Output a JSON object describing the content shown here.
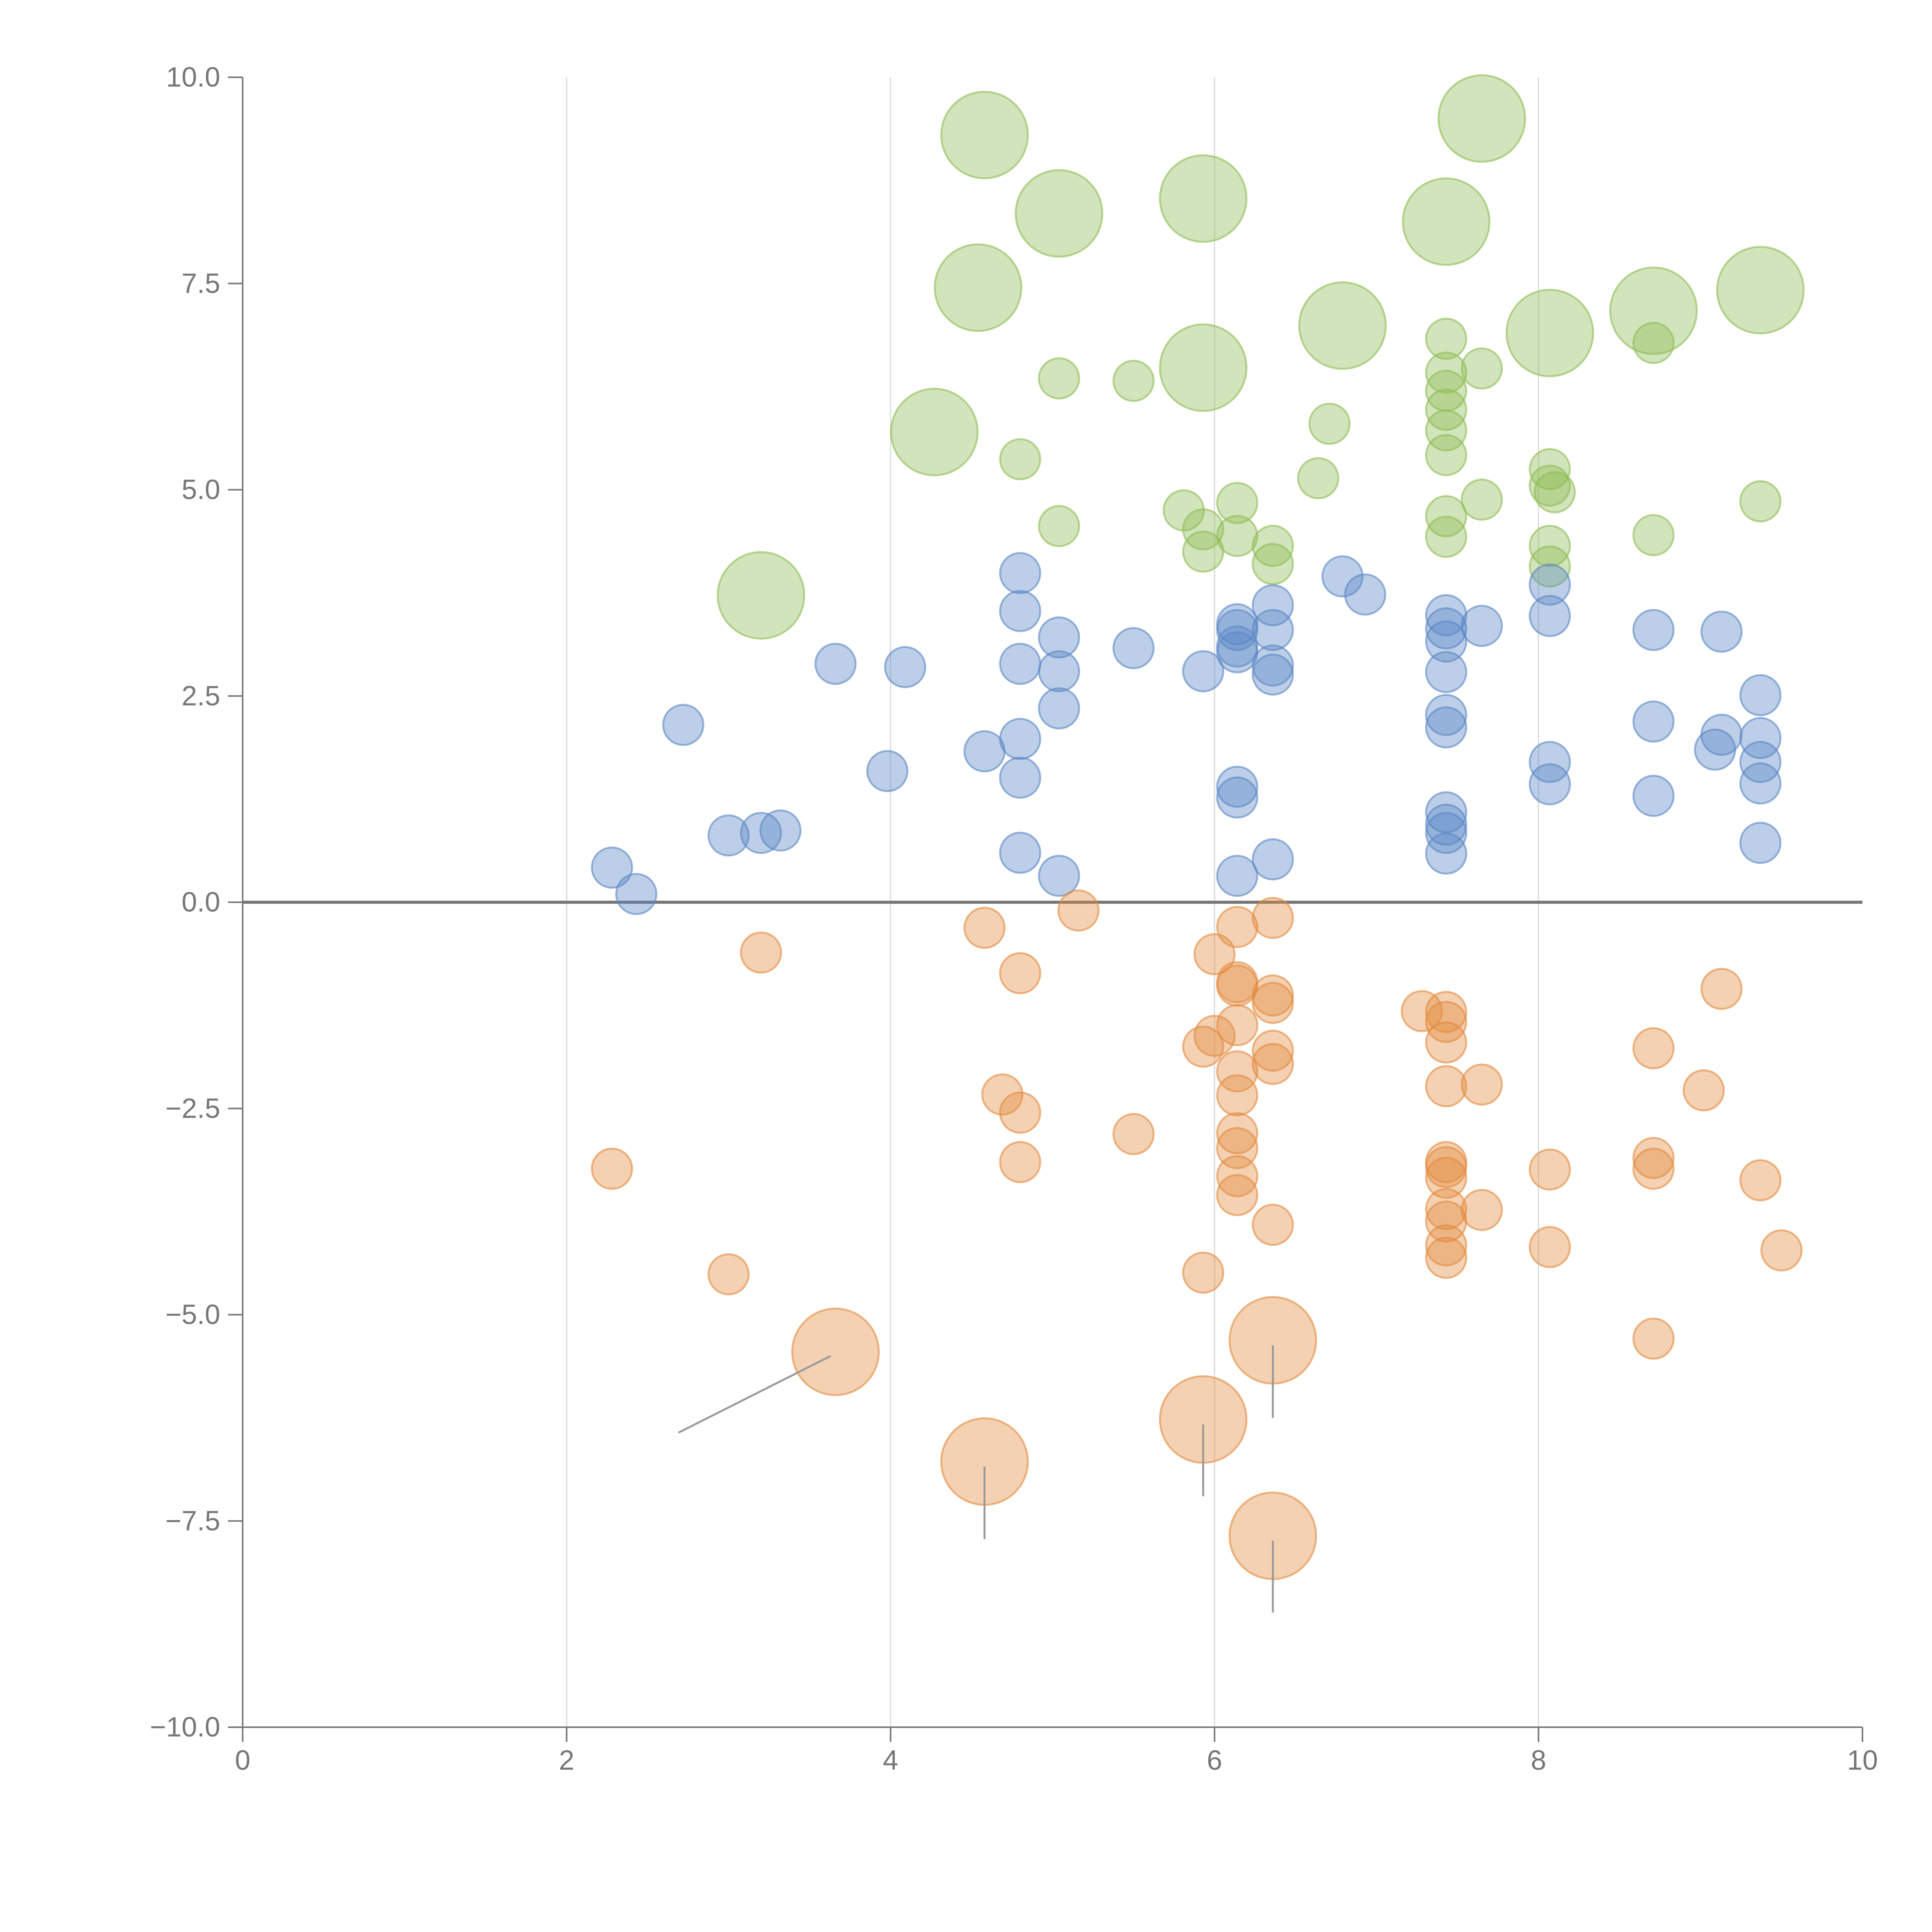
{
  "chart_data": {
    "type": "scatter",
    "title": "",
    "xlabel": "",
    "ylabel": "",
    "xlim": [
      0,
      10
    ],
    "ylim": [
      -10,
      10
    ],
    "grid": "vertical",
    "x_ticks": [
      "0",
      "2",
      "4",
      "6",
      "8",
      "10"
    ],
    "x_tick_values": [
      0,
      2,
      4,
      6,
      8,
      10
    ],
    "y_ticks": [
      "10.0",
      "7.5",
      "5.0",
      "2.5",
      "0.0",
      "−2.5",
      "−5.0",
      "−7.5",
      "−10.0"
    ],
    "y_tick_values": [
      10,
      7.5,
      5,
      2.5,
      0,
      -2.5,
      -5,
      -7.5,
      -10
    ],
    "colors": {
      "green": "#8fbc55",
      "blue": "#5b87c5",
      "orange": "#e38b3f",
      "axis": "#777777",
      "grid": "#d9d9d9",
      "zero_line": "#777777",
      "leader": "#999999"
    },
    "series": [
      {
        "name": "green",
        "color": "#8fbc55",
        "points": [
          [
            4.58,
            9.3,
            3
          ],
          [
            5.93,
            8.53,
            3
          ],
          [
            5.04,
            8.35,
            3
          ],
          [
            7.43,
            8.25,
            3
          ],
          [
            7.65,
            9.5,
            3
          ],
          [
            4.54,
            7.45,
            3
          ],
          [
            6.79,
            6.99,
            3
          ],
          [
            8.07,
            6.9,
            3
          ],
          [
            8.71,
            7.17,
            3
          ],
          [
            9.37,
            7.42,
            3
          ],
          [
            5.93,
            6.48,
            3
          ],
          [
            4.27,
            5.7,
            3
          ],
          [
            3.2,
            3.72,
            3
          ],
          [
            5.04,
            6.35,
            1
          ],
          [
            5.5,
            6.32,
            1
          ],
          [
            7.43,
            6.83,
            1
          ],
          [
            7.65,
            6.47,
            1
          ],
          [
            8.71,
            6.78,
            1
          ],
          [
            7.43,
            6.42,
            1
          ],
          [
            7.43,
            6.2,
            1
          ],
          [
            7.43,
            5.97,
            1
          ],
          [
            7.43,
            5.72,
            1
          ],
          [
            7.43,
            5.42,
            1
          ],
          [
            6.71,
            5.8,
            1
          ],
          [
            4.8,
            5.37,
            1
          ],
          [
            6.64,
            5.14,
            1
          ],
          [
            8.07,
            5.25,
            1
          ],
          [
            8.07,
            5.05,
            1
          ],
          [
            8.1,
            4.97,
            1
          ],
          [
            7.65,
            4.88,
            1
          ],
          [
            9.37,
            4.86,
            1
          ],
          [
            5.81,
            4.75,
            1
          ],
          [
            6.14,
            4.84,
            1
          ],
          [
            7.43,
            4.68,
            1
          ],
          [
            5.04,
            4.56,
            1
          ],
          [
            5.93,
            4.52,
            1
          ],
          [
            6.14,
            4.44,
            1
          ],
          [
            7.43,
            4.43,
            1
          ],
          [
            8.71,
            4.45,
            1
          ],
          [
            6.36,
            4.32,
            1
          ],
          [
            8.07,
            4.32,
            1
          ],
          [
            5.93,
            4.25,
            1
          ],
          [
            6.36,
            4.1,
            1
          ],
          [
            8.07,
            4.07,
            1
          ]
        ]
      },
      {
        "name": "blue",
        "color": "#5b87c5",
        "points": [
          [
            4.8,
            3.99,
            1
          ],
          [
            6.79,
            3.95,
            1
          ],
          [
            6.93,
            3.73,
            1
          ],
          [
            8.07,
            3.85,
            1
          ],
          [
            6.36,
            3.6,
            1
          ],
          [
            4.8,
            3.53,
            1
          ],
          [
            7.43,
            3.48,
            1
          ],
          [
            8.07,
            3.47,
            1
          ],
          [
            6.14,
            3.37,
            1
          ],
          [
            7.65,
            3.35,
            1
          ],
          [
            7.43,
            3.32,
            1
          ],
          [
            6.14,
            3.3,
            1
          ],
          [
            6.36,
            3.3,
            1
          ],
          [
            8.71,
            3.3,
            1
          ],
          [
            9.13,
            3.28,
            1
          ],
          [
            5.04,
            3.21,
            1
          ],
          [
            7.43,
            3.16,
            1
          ],
          [
            6.14,
            3.1,
            1
          ],
          [
            5.5,
            3.08,
            1
          ],
          [
            6.14,
            3.03,
            1
          ],
          [
            3.66,
            2.89,
            1
          ],
          [
            4.8,
            2.89,
            1
          ],
          [
            4.09,
            2.85,
            1
          ],
          [
            6.36,
            2.87,
            1
          ],
          [
            5.04,
            2.8,
            1
          ],
          [
            5.93,
            2.8,
            1
          ],
          [
            7.43,
            2.79,
            1
          ],
          [
            6.36,
            2.76,
            1
          ],
          [
            9.37,
            2.51,
            1
          ],
          [
            5.04,
            2.35,
            1
          ],
          [
            7.43,
            2.27,
            1
          ],
          [
            8.71,
            2.19,
            1
          ],
          [
            2.72,
            2.15,
            1
          ],
          [
            7.43,
            2.12,
            1
          ],
          [
            4.8,
            1.98,
            1
          ],
          [
            9.37,
            1.99,
            1
          ],
          [
            9.13,
            2.03,
            1
          ],
          [
            9.09,
            1.85,
            1
          ],
          [
            4.58,
            1.83,
            1
          ],
          [
            8.07,
            1.7,
            1
          ],
          [
            9.37,
            1.7,
            1
          ],
          [
            3.98,
            1.59,
            1
          ],
          [
            4.8,
            1.51,
            1
          ],
          [
            8.07,
            1.43,
            1
          ],
          [
            9.37,
            1.44,
            1
          ],
          [
            6.14,
            1.4,
            1
          ],
          [
            6.14,
            1.27,
            1
          ],
          [
            8.71,
            1.29,
            1
          ],
          [
            7.43,
            1.09,
            1
          ],
          [
            7.43,
            0.94,
            1
          ],
          [
            7.43,
            0.84,
            1
          ],
          [
            3.32,
            0.87,
            1
          ],
          [
            3.2,
            0.84,
            1
          ],
          [
            3.0,
            0.81,
            1
          ],
          [
            9.37,
            0.72,
            1
          ],
          [
            4.8,
            0.6,
            1
          ],
          [
            7.43,
            0.59,
            1
          ],
          [
            6.36,
            0.52,
            1
          ],
          [
            2.28,
            0.42,
            1
          ],
          [
            5.04,
            0.32,
            1
          ],
          [
            6.14,
            0.32,
            1
          ],
          [
            2.43,
            0.1,
            1
          ]
        ]
      },
      {
        "name": "orange",
        "color": "#e38b3f",
        "points": [
          [
            5.16,
            -0.1,
            1
          ],
          [
            6.36,
            -0.19,
            1
          ],
          [
            4.58,
            -0.31,
            1
          ],
          [
            6.14,
            -0.3,
            1
          ],
          [
            3.2,
            -0.61,
            1
          ],
          [
            6.0,
            -0.63,
            1
          ],
          [
            4.8,
            -0.86,
            1
          ],
          [
            6.14,
            -0.97,
            1
          ],
          [
            6.14,
            -1.01,
            1
          ],
          [
            9.13,
            -1.05,
            1
          ],
          [
            6.36,
            -1.13,
            1
          ],
          [
            6.36,
            -1.22,
            1
          ],
          [
            7.28,
            -1.32,
            1
          ],
          [
            7.43,
            -1.33,
            1
          ],
          [
            7.43,
            -1.45,
            1
          ],
          [
            6.14,
            -1.49,
            1
          ],
          [
            6.0,
            -1.62,
            1
          ],
          [
            7.43,
            -1.7,
            1
          ],
          [
            5.93,
            -1.75,
            1
          ],
          [
            8.71,
            -1.77,
            1
          ],
          [
            6.36,
            -1.8,
            1
          ],
          [
            6.36,
            -1.96,
            1
          ],
          [
            6.14,
            -2.05,
            1
          ],
          [
            7.43,
            -2.23,
            1
          ],
          [
            7.65,
            -2.21,
            1
          ],
          [
            4.69,
            -2.33,
            1
          ],
          [
            6.14,
            -2.34,
            1
          ],
          [
            9.02,
            -2.28,
            1
          ],
          [
            4.8,
            -2.55,
            1
          ],
          [
            5.5,
            -2.81,
            1
          ],
          [
            6.14,
            -2.8,
            1
          ],
          [
            6.14,
            -2.98,
            1
          ],
          [
            4.8,
            -3.15,
            1
          ],
          [
            7.43,
            -3.15,
            1
          ],
          [
            8.71,
            -3.1,
            1
          ],
          [
            2.28,
            -3.23,
            1
          ],
          [
            8.07,
            -3.24,
            1
          ],
          [
            7.43,
            -3.21,
            1
          ],
          [
            8.71,
            -3.23,
            1
          ],
          [
            6.14,
            -3.32,
            1
          ],
          [
            7.43,
            -3.34,
            1
          ],
          [
            9.37,
            -3.37,
            1
          ],
          [
            6.14,
            -3.55,
            1
          ],
          [
            7.43,
            -3.72,
            1
          ],
          [
            7.65,
            -3.73,
            1
          ],
          [
            7.43,
            -3.87,
            1
          ],
          [
            6.36,
            -3.91,
            1
          ],
          [
            7.43,
            -4.16,
            1
          ],
          [
            8.07,
            -4.18,
            1
          ],
          [
            9.5,
            -4.22,
            1
          ],
          [
            7.43,
            -4.31,
            1
          ],
          [
            3.0,
            -4.51,
            1
          ],
          [
            5.93,
            -4.49,
            1
          ],
          [
            8.71,
            -5.29,
            1
          ],
          [
            3.66,
            -5.45,
            3
          ],
          [
            6.36,
            -5.31,
            3
          ],
          [
            5.93,
            -6.27,
            3
          ],
          [
            4.58,
            -6.78,
            3
          ],
          [
            6.36,
            -7.68,
            3
          ]
        ]
      }
    ],
    "leader_lines": [
      [
        2.69,
        -6.43,
        3.63,
        -5.5
      ],
      [
        6.36,
        -5.37,
        6.36,
        -6.25
      ],
      [
        5.93,
        -6.33,
        5.93,
        -7.2
      ],
      [
        4.58,
        -6.84,
        4.58,
        -7.72
      ],
      [
        6.36,
        -7.74,
        6.36,
        -8.61
      ]
    ]
  }
}
